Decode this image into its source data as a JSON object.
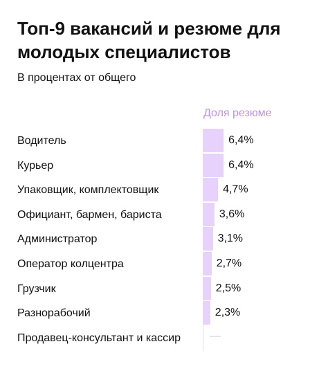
{
  "chart_data": {
    "type": "bar",
    "title": "Топ-9 вакансий и резюме для молодых специалистов",
    "subtitle": "В процентах от общего",
    "series_label": "Доля резюме",
    "categories": [
      "Водитель",
      "Курьер",
      "Упаковщик, комплектовщик",
      "Официант, бармен, бариста",
      "Администратор",
      "Оператор колцентра",
      "Грузчик",
      "Разнорабочий",
      "Продавец-консультант и кассир"
    ],
    "values": [
      6.4,
      6.4,
      4.7,
      3.6,
      3.1,
      2.7,
      2.5,
      2.3,
      null
    ],
    "value_labels": [
      "6,4%",
      "6,4%",
      "4,7%",
      "3,6%",
      "3,1%",
      "2,7%",
      "2,5%",
      "2,3%",
      "—"
    ],
    "color": "#e6d2fa",
    "header_color": "#c090e4"
  }
}
